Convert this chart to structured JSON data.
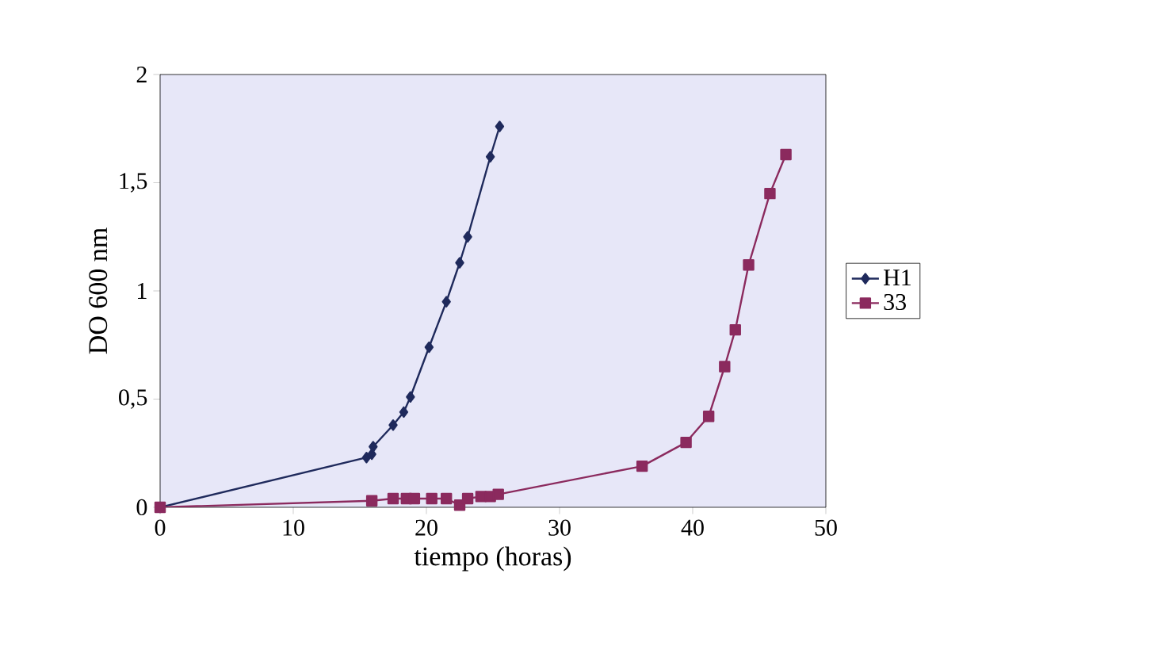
{
  "chart_data": {
    "type": "line",
    "xlabel": "tiempo (horas)",
    "ylabel": "DO 600 nm",
    "xlim": [
      0,
      50
    ],
    "xticks": [
      0,
      10,
      20,
      30,
      40,
      50
    ],
    "ylim": [
      0,
      2
    ],
    "yticks": [
      0,
      {
        "value": 0.5,
        "label": "0,5"
      },
      1,
      {
        "value": 1.5,
        "label": "1,5"
      },
      2
    ],
    "grid": false,
    "legend": "right",
    "series": [
      {
        "name": "H1",
        "color": "#1f2a5c",
        "marker": "diamond",
        "x": [
          0,
          15.5,
          15.9,
          16.0,
          17.5,
          18.3,
          18.8,
          20.2,
          21.5,
          22.5,
          23.1,
          24.8,
          25.5
        ],
        "values": [
          0,
          0.23,
          0.245,
          0.28,
          0.38,
          0.44,
          0.51,
          0.74,
          0.95,
          1.13,
          1.25,
          1.62,
          1.76
        ]
      },
      {
        "name": "33",
        "color": "#8b2a5e",
        "marker": "square",
        "x": [
          0,
          15.9,
          17.5,
          18.5,
          19.1,
          20.4,
          21.5,
          22.5,
          23.1,
          24.1,
          24.8,
          25.4,
          36.2,
          39.5,
          41.2,
          42.4,
          43.2,
          44.2,
          45.8,
          47.0
        ],
        "values": [
          0,
          0.03,
          0.04,
          0.04,
          0.04,
          0.04,
          0.04,
          0.01,
          0.04,
          0.05,
          0.05,
          0.06,
          0.19,
          0.3,
          0.42,
          0.65,
          0.82,
          1.12,
          1.45,
          1.63
        ]
      }
    ]
  }
}
